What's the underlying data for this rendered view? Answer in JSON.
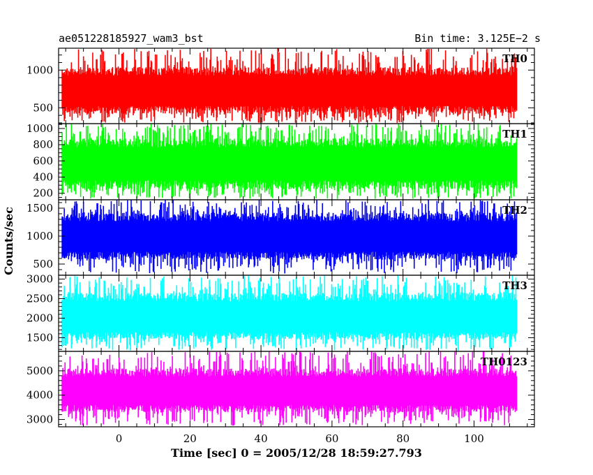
{
  "header": {
    "left": "ae051228185927_wam3_bst",
    "right": "Bin time: 3.125E−2 s"
  },
  "chart_data": {
    "type": "line",
    "xlabel": "Time [sec] 0 = 2005/12/28 18:59:27.793",
    "ylabel": "Counts/sec",
    "xlim": [
      -17,
      117
    ],
    "x_data_range": [
      -16,
      112
    ],
    "x_ticks": [
      0,
      20,
      40,
      60,
      80,
      100
    ],
    "x_tick_labels": [
      "0",
      "20",
      "40",
      "60",
      "80",
      "100"
    ],
    "x_minor_step": 5,
    "grid": false,
    "bin_time_s": 0.03125,
    "panels": [
      {
        "name": "TH0",
        "color": "#ff0000",
        "ylim": [
          290,
          1290
        ],
        "y_ticks": [
          500,
          1000
        ],
        "y_tick_labels": [
          "500",
          "1000"
        ],
        "y_minor_step": 100,
        "level": 720,
        "body_range": [
          420,
          1040
        ],
        "spike_range": [
          300,
          1290
        ]
      },
      {
        "name": "TH1",
        "color": "#00ff00",
        "ylim": [
          120,
          1060
        ],
        "y_ticks": [
          200,
          400,
          600,
          800,
          1000
        ],
        "y_tick_labels": [
          "200",
          "400",
          "600",
          "800",
          "1000"
        ],
        "y_minor_step": 50,
        "level": 560,
        "body_range": [
          250,
          880
        ],
        "spike_range": [
          130,
          1060
        ]
      },
      {
        "name": "TH2",
        "color": "#0000ff",
        "ylim": [
          300,
          1650
        ],
        "y_ticks": [
          500,
          1000,
          1500
        ],
        "y_tick_labels": [
          "500",
          "1000",
          "1500"
        ],
        "y_minor_step": 100,
        "level": 980,
        "body_range": [
          580,
          1420
        ],
        "spike_range": [
          330,
          1650
        ]
      },
      {
        "name": "TH3",
        "color": "#00ffff",
        "ylim": [
          1150,
          3100
        ],
        "y_ticks": [
          1500,
          2000,
          2500,
          3000
        ],
        "y_tick_labels": [
          "1500",
          "2000",
          "2500",
          "3000"
        ],
        "y_minor_step": 100,
        "level": 2000,
        "body_range": [
          1450,
          2650
        ],
        "spike_range": [
          1170,
          3100
        ]
      },
      {
        "name": "TH0123",
        "color": "#ff00ff",
        "ylim": [
          2700,
          5800
        ],
        "y_ticks": [
          3000,
          4000,
          5000
        ],
        "y_tick_labels": [
          "3000",
          "4000",
          "5000"
        ],
        "y_minor_step": 200,
        "level": 4150,
        "body_range": [
          3300,
          5100
        ],
        "spike_range": [
          2750,
          5800
        ]
      }
    ]
  }
}
